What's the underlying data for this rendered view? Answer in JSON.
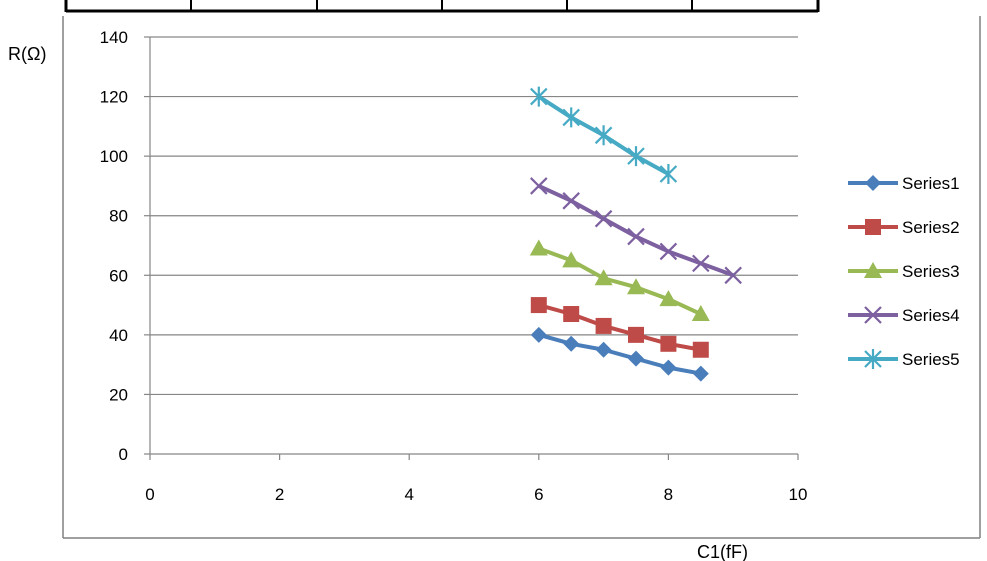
{
  "chart_data": {
    "type": "line",
    "title": "",
    "xlabel": "C1(fF)",
    "ylabel": "R(Ω)",
    "xlim": [
      0,
      10
    ],
    "ylim": [
      0,
      140
    ],
    "x_ticks": [
      "0",
      "2",
      "4",
      "6",
      "8",
      "10"
    ],
    "y_ticks": [
      "0",
      "20",
      "40",
      "60",
      "80",
      "100",
      "120",
      "140"
    ],
    "grid": "horizontal",
    "legend": "right",
    "series": [
      {
        "name": "Series1",
        "color": "#4a7ebb",
        "marker": "diamond",
        "x": [
          6,
          6.5,
          7,
          7.5,
          8,
          8.5
        ],
        "y": [
          40,
          37,
          35,
          32,
          29,
          27
        ]
      },
      {
        "name": "Series2",
        "color": "#be4b48",
        "marker": "square",
        "x": [
          6,
          6.5,
          7,
          7.5,
          8,
          8.5
        ],
        "y": [
          50,
          47,
          43,
          40,
          37,
          35
        ]
      },
      {
        "name": "Series3",
        "color": "#98b954",
        "marker": "triangle",
        "x": [
          6,
          6.5,
          7,
          7.5,
          8,
          8.5
        ],
        "y": [
          69,
          65,
          59,
          56,
          52,
          47
        ]
      },
      {
        "name": "Series4",
        "color": "#7d60a0",
        "marker": "x",
        "x": [
          6,
          6.5,
          7,
          7.5,
          8,
          8.5,
          9
        ],
        "y": [
          90,
          85,
          79,
          73,
          68,
          64,
          60
        ]
      },
      {
        "name": "Series5",
        "color": "#46aac5",
        "marker": "star",
        "x": [
          6,
          6.5,
          7,
          7.5,
          8
        ],
        "y": [
          120,
          113,
          107,
          100,
          94
        ]
      }
    ]
  }
}
